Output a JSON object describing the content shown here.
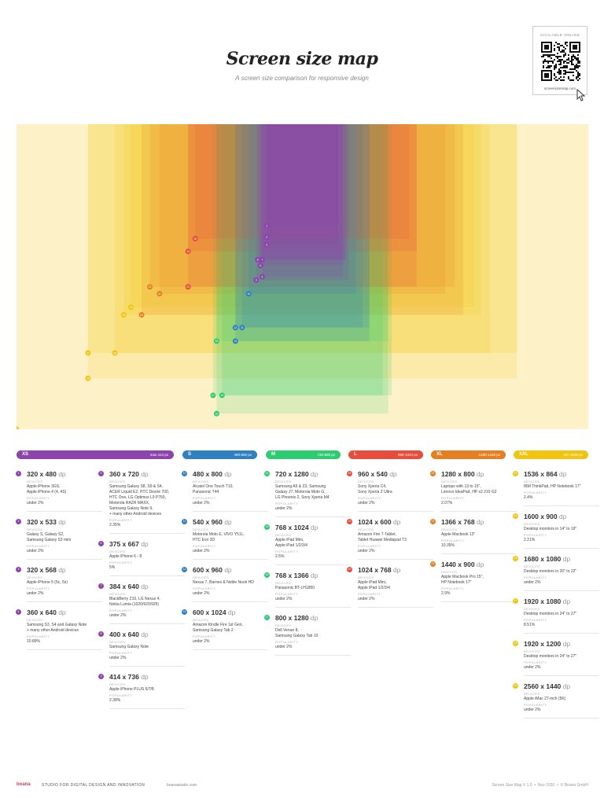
{
  "header": {
    "title": "Screen size map",
    "subtitle": "A screen size comparison for responsive design"
  },
  "qr": {
    "available_label": "AVAILABLE ONLINE",
    "url": "screensizemap.com"
  },
  "categories": [
    {
      "key": "XS",
      "label": "XS",
      "range": "max 414 px",
      "color": "#8e44ad"
    },
    {
      "key": "S",
      "label": "S",
      "range": "480-600 px",
      "color": "#2f7fc1"
    },
    {
      "key": "M",
      "label": "M",
      "range": "720-800 px",
      "color": "#2ecc71"
    },
    {
      "key": "L",
      "label": "L",
      "range": "960-1024 px",
      "color": "#e74c3c"
    },
    {
      "key": "XL",
      "label": "XL",
      "range": "1280-1440 px",
      "color": "#e67e22"
    },
    {
      "key": "XXL",
      "label": "XXL",
      "range": "min 1536 px",
      "color": "#f1c40f"
    }
  ],
  "labels": {
    "devices": "DEVICES",
    "popularity": "POPULARITY",
    "unit": "dp"
  },
  "columns": [
    [
      {
        "cat": "XS",
        "num": "1",
        "res": "320 x 480",
        "devices": [
          "Apple iPhone 3GS,",
          "Apple iPhone 4 (4, 4S)"
        ],
        "pop": "under 2%"
      },
      {
        "cat": "XS",
        "num": "2",
        "res": "320 x 533",
        "devices": [
          "Galaxy S, Galaxy S2,",
          "Samsung Galaxy S3 mini"
        ],
        "pop": "under 2%"
      },
      {
        "cat": "XS",
        "num": "3",
        "res": "320 x 568",
        "devices": [
          "Apple iPhone 5 (5c, 5s)"
        ],
        "pop": "under 2%"
      },
      {
        "cat": "XS",
        "num": "4",
        "res": "360 x 640",
        "devices": [
          "Samsung S3, S4 and Galaxy Note",
          "+ many other Android devices"
        ],
        "pop": "10.89%"
      }
    ],
    [
      {
        "cat": "XS",
        "num": "5",
        "res": "360 x 720",
        "devices": [
          "Samsung Galaxy S8, S9 & S4,",
          "ACER Liquid E2, HTC Desire 700,",
          "HTC One, LG Optimus L9 P760,",
          "Motorola RAZR MAXX,",
          "Samsung Galaxy Note 9,",
          "+ many other Android devices"
        ],
        "pop": "2.35%"
      },
      {
        "cat": "XS",
        "num": "6",
        "res": "375 x 667",
        "devices": [
          "Apple iPhone 6 - 8"
        ],
        "pop": "5%"
      },
      {
        "cat": "XS",
        "num": "7",
        "res": "384 x 640",
        "devices": [
          "BlackBerry Z10, LG Nexus 4,",
          "Nokia Lumia (1020/920/925)"
        ],
        "pop": "under 2%"
      },
      {
        "cat": "XS",
        "num": "8",
        "res": "400 x 640",
        "devices": [
          "Samsung Galaxy Note"
        ],
        "pop": "under 2%"
      },
      {
        "cat": "XS",
        "num": "9",
        "res": "414 x 736",
        "devices": [
          "Apple iPhone PLUS 6/7/8"
        ],
        "pop": "2.38%"
      }
    ],
    [
      {
        "cat": "S",
        "num": "10",
        "res": "480 x 800",
        "devices": [
          "Alcatel One Touch T10,",
          "Panasonic T44"
        ],
        "pop": "under 2%"
      },
      {
        "cat": "S",
        "num": "11",
        "res": "540 x 960",
        "devices": [
          "Motorola Moto E, VIVO Y51L,",
          "HTC Evo 3D"
        ],
        "pop": "under 2%"
      },
      {
        "cat": "S",
        "num": "12",
        "res": "600 x 960",
        "devices": [
          "Nexus 7, Barnes & Noble Nook HD"
        ],
        "pop": "under 2%"
      },
      {
        "cat": "S",
        "num": "13",
        "res": "600 x 1024",
        "devices": [
          "Amazon Kindle Fire 1st Gen,",
          "Samsung Galaxy Tab 2"
        ],
        "pop": "under 2%"
      }
    ],
    [
      {
        "cat": "M",
        "num": "14",
        "res": "720 x 1280",
        "devices": [
          "Samsung A5 & Z3, Samsung",
          "Galaxy J7, Motorola Moto G,",
          "LG Phoenix 2, Sony Xperia M4"
        ],
        "pop": "under 2%"
      },
      {
        "cat": "M",
        "num": "15",
        "res": "768 x 1024",
        "devices": [
          "Apple iPad Mini,",
          "Apple iPad 1/2/3/4"
        ],
        "pop": "2.5%"
      },
      {
        "cat": "M",
        "num": "16",
        "res": "768 x 1366",
        "devices": [
          "Panasonic BT-LH1850"
        ],
        "pop": "under 2%"
      },
      {
        "cat": "M",
        "num": "17",
        "res": "800 x 1280",
        "devices": [
          "Dell Venue 8,",
          "Samsung Galaxy Tab 10"
        ],
        "pop": "under 2%"
      }
    ],
    [
      {
        "cat": "L",
        "num": "18",
        "res": "960 x 540",
        "devices": [
          "Sony Xperia C4,",
          "Sony Xperia Z Ultra"
        ],
        "pop": "under 2%"
      },
      {
        "cat": "L",
        "num": "19",
        "res": "1024 x 600",
        "devices": [
          "Amazon Fire 7-Tablet,",
          "Tablet Huawei Mediapad T3"
        ],
        "pop": "under 2%"
      },
      {
        "cat": "L",
        "num": "20",
        "res": "1024 x 768",
        "devices": [
          "Apple iPad Mini,",
          "Apple iPad 1/2/3/4"
        ],
        "pop": "under 2%"
      }
    ],
    [
      {
        "cat": "XL",
        "num": "21",
        "res": "1280 x 800",
        "devices": [
          "Laptops with 13 to 15\",",
          "Lenovo IdeaPad, HP x2 210 G2"
        ],
        "pop": "2.07%"
      },
      {
        "cat": "XL",
        "num": "22",
        "res": "1366 x 768",
        "devices": [
          "Apple Macbook 13\""
        ],
        "pop": "10.35%"
      },
      {
        "cat": "XL",
        "num": "23",
        "res": "1440 x 900",
        "devices": [
          "Apple Macbook Pro 15\",",
          "HP Notebook 17\""
        ],
        "pop": "2.9%"
      }
    ],
    [
      {
        "cat": "XXL",
        "num": "24",
        "res": "1536 x 864",
        "devices": [
          "IBM ThinkPad, HP Notebook 17\""
        ],
        "pop": "2.4%"
      },
      {
        "cat": "XXL",
        "num": "25",
        "res": "1600 x 900",
        "devices": [
          "Desktop monitors in 14\" to 19\""
        ],
        "pop": "2.21%"
      },
      {
        "cat": "XXL",
        "num": "26",
        "res": "1680 x 1080",
        "devices": [
          "Desktop monitors in 20\" to 22\""
        ],
        "pop": "under 2%"
      },
      {
        "cat": "XXL",
        "num": "27",
        "res": "1920 x 1080",
        "devices": [
          "Desktop monitors in 24\" to 27\""
        ],
        "pop": "8.51%"
      },
      {
        "cat": "XXL",
        "num": "28",
        "res": "1920 x 1200",
        "devices": [
          "Desktop monitors in 24\" to 27\""
        ],
        "pop": "under 2%"
      },
      {
        "cat": "XXL",
        "num": "29",
        "res": "2560 x 1440",
        "devices": [
          "Apple iMac 27-inch (5K)"
        ],
        "pop": "under 2%"
      }
    ]
  ],
  "footer": {
    "brand": "boana",
    "tagline": "STUDIO FOR DIGITAL DESIGN AND INNOVATION",
    "site": "boanastudio.com",
    "version": "Screen Size Map V 1.0",
    "date": "Nov 2020",
    "copyright": "© Boana GmbH"
  }
}
